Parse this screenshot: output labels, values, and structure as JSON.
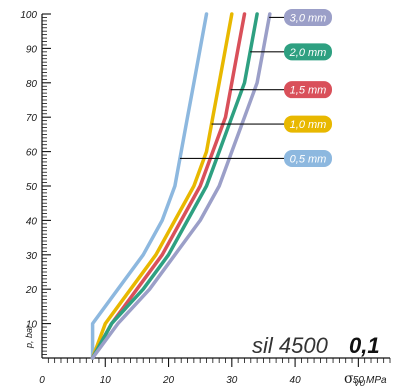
{
  "chart_data": {
    "type": "line",
    "xlabel": "MPa",
    "xlabel_symbol": "σ",
    "xlabel_subscript": "VU",
    "ylabel": "p, bar",
    "xlim": [
      0,
      55
    ],
    "ylim": [
      0,
      100
    ],
    "x_ticks": [
      "0",
      "10",
      "20",
      "30",
      "40",
      "50"
    ],
    "y_ticks": [
      "10",
      "20",
      "30",
      "40",
      "50",
      "60",
      "70",
      "80",
      "90",
      "100"
    ],
    "grid": false,
    "annotation": {
      "product": "sil 4500",
      "coefficient": "0,1"
    },
    "series": [
      {
        "name": "0,5 mm",
        "color": "#8db8df",
        "label_y": 58,
        "points": [
          [
            8,
            0
          ],
          [
            8,
            10
          ],
          [
            12,
            20
          ],
          [
            16,
            30
          ],
          [
            19,
            40
          ],
          [
            21,
            50
          ],
          [
            22,
            60
          ],
          [
            23,
            70
          ],
          [
            24,
            80
          ],
          [
            25,
            90
          ],
          [
            26,
            100
          ]
        ]
      },
      {
        "name": "1,0 mm",
        "color": "#e8b800",
        "label_y": 68,
        "points": [
          [
            8,
            0
          ],
          [
            10,
            10
          ],
          [
            14,
            20
          ],
          [
            18,
            30
          ],
          [
            21,
            40
          ],
          [
            24,
            50
          ],
          [
            26,
            60
          ],
          [
            27,
            70
          ],
          [
            28,
            80
          ],
          [
            29,
            90
          ],
          [
            30,
            100
          ]
        ]
      },
      {
        "name": "1,5 mm",
        "color": "#d9505a",
        "label_y": 78,
        "points": [
          [
            8,
            0
          ],
          [
            11,
            10
          ],
          [
            15,
            20
          ],
          [
            19,
            30
          ],
          [
            22,
            40
          ],
          [
            25,
            50
          ],
          [
            27,
            60
          ],
          [
            29,
            70
          ],
          [
            30,
            80
          ],
          [
            31,
            90
          ],
          [
            32,
            100
          ]
        ]
      },
      {
        "name": "2,0 mm",
        "color": "#2ea081",
        "label_y": 89,
        "points": [
          [
            8,
            0
          ],
          [
            11,
            10
          ],
          [
            16,
            20
          ],
          [
            20,
            30
          ],
          [
            23,
            40
          ],
          [
            26,
            50
          ],
          [
            28,
            60
          ],
          [
            30,
            70
          ],
          [
            32,
            80
          ],
          [
            33,
            90
          ],
          [
            34,
            100
          ]
        ]
      },
      {
        "name": "3,0 mm",
        "color": "#9b9fc8",
        "label_y": 99,
        "points": [
          [
            8,
            0
          ],
          [
            12,
            10
          ],
          [
            17,
            20
          ],
          [
            21,
            30
          ],
          [
            25,
            40
          ],
          [
            28,
            50
          ],
          [
            30,
            60
          ],
          [
            32,
            70
          ],
          [
            34,
            80
          ],
          [
            35,
            90
          ],
          [
            36,
            100
          ]
        ]
      }
    ]
  }
}
